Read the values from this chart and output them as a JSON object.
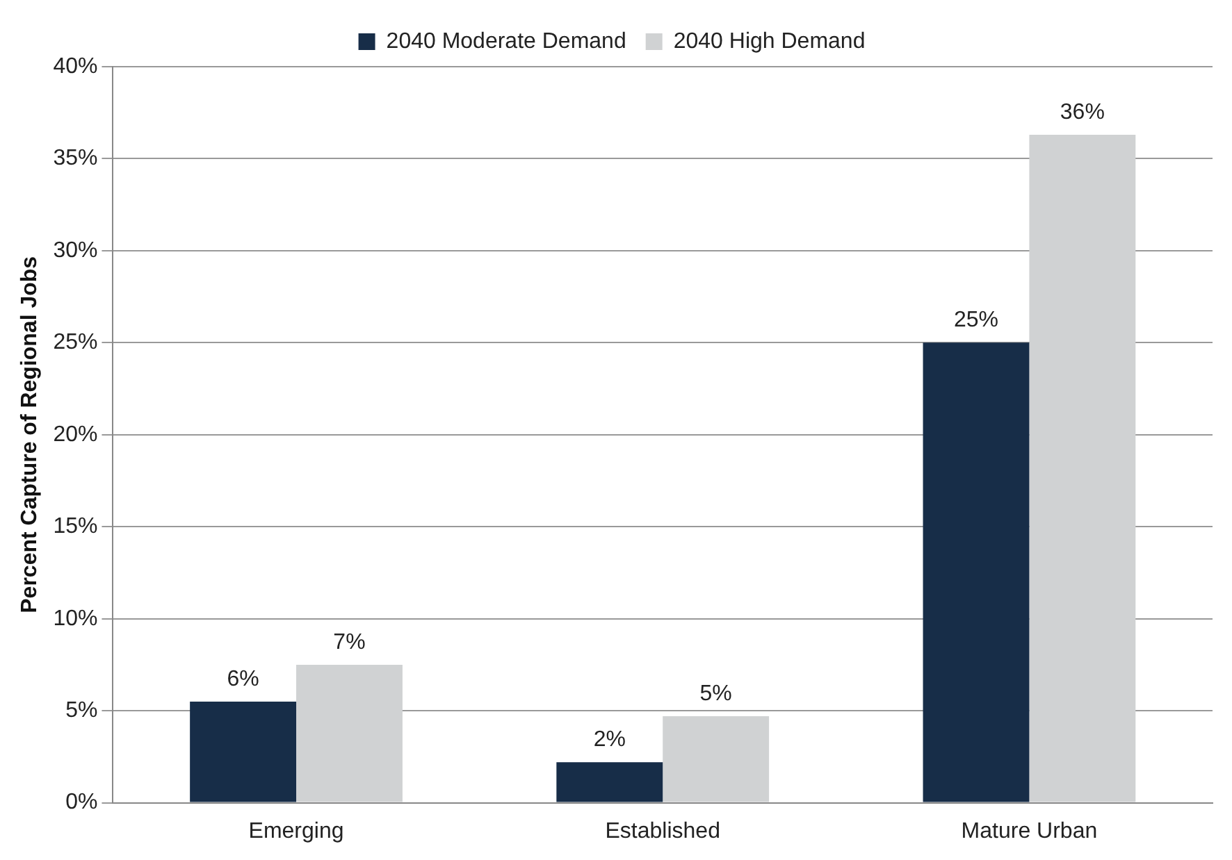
{
  "chart_data": {
    "type": "bar",
    "ylabel": "Percent Capture of Regional Jobs",
    "categories": [
      "Emerging",
      "Established",
      "Mature Urban"
    ],
    "series": [
      {
        "name": "2040 Moderate Demand",
        "color": "#172d48",
        "values": [
          5.5,
          2.2,
          25
        ],
        "value_labels": [
          "6%",
          "2%",
          "25%"
        ]
      },
      {
        "name": "2040 High Demand",
        "color": "#d0d2d3",
        "values": [
          7.5,
          4.7,
          36.3
        ],
        "value_labels": [
          "7%",
          "5%",
          "36%"
        ]
      }
    ],
    "ylim": [
      0,
      40
    ],
    "yticks": [
      {
        "value": 0,
        "label": "0%"
      },
      {
        "value": 5,
        "label": "5%"
      },
      {
        "value": 10,
        "label": "10%"
      },
      {
        "value": 15,
        "label": "15%"
      },
      {
        "value": 20,
        "label": "20%"
      },
      {
        "value": 25,
        "label": "25%"
      },
      {
        "value": 30,
        "label": "30%"
      },
      {
        "value": 35,
        "label": "35%"
      },
      {
        "value": 40,
        "label": "40%"
      }
    ],
    "grid": "y",
    "legend": "top"
  }
}
